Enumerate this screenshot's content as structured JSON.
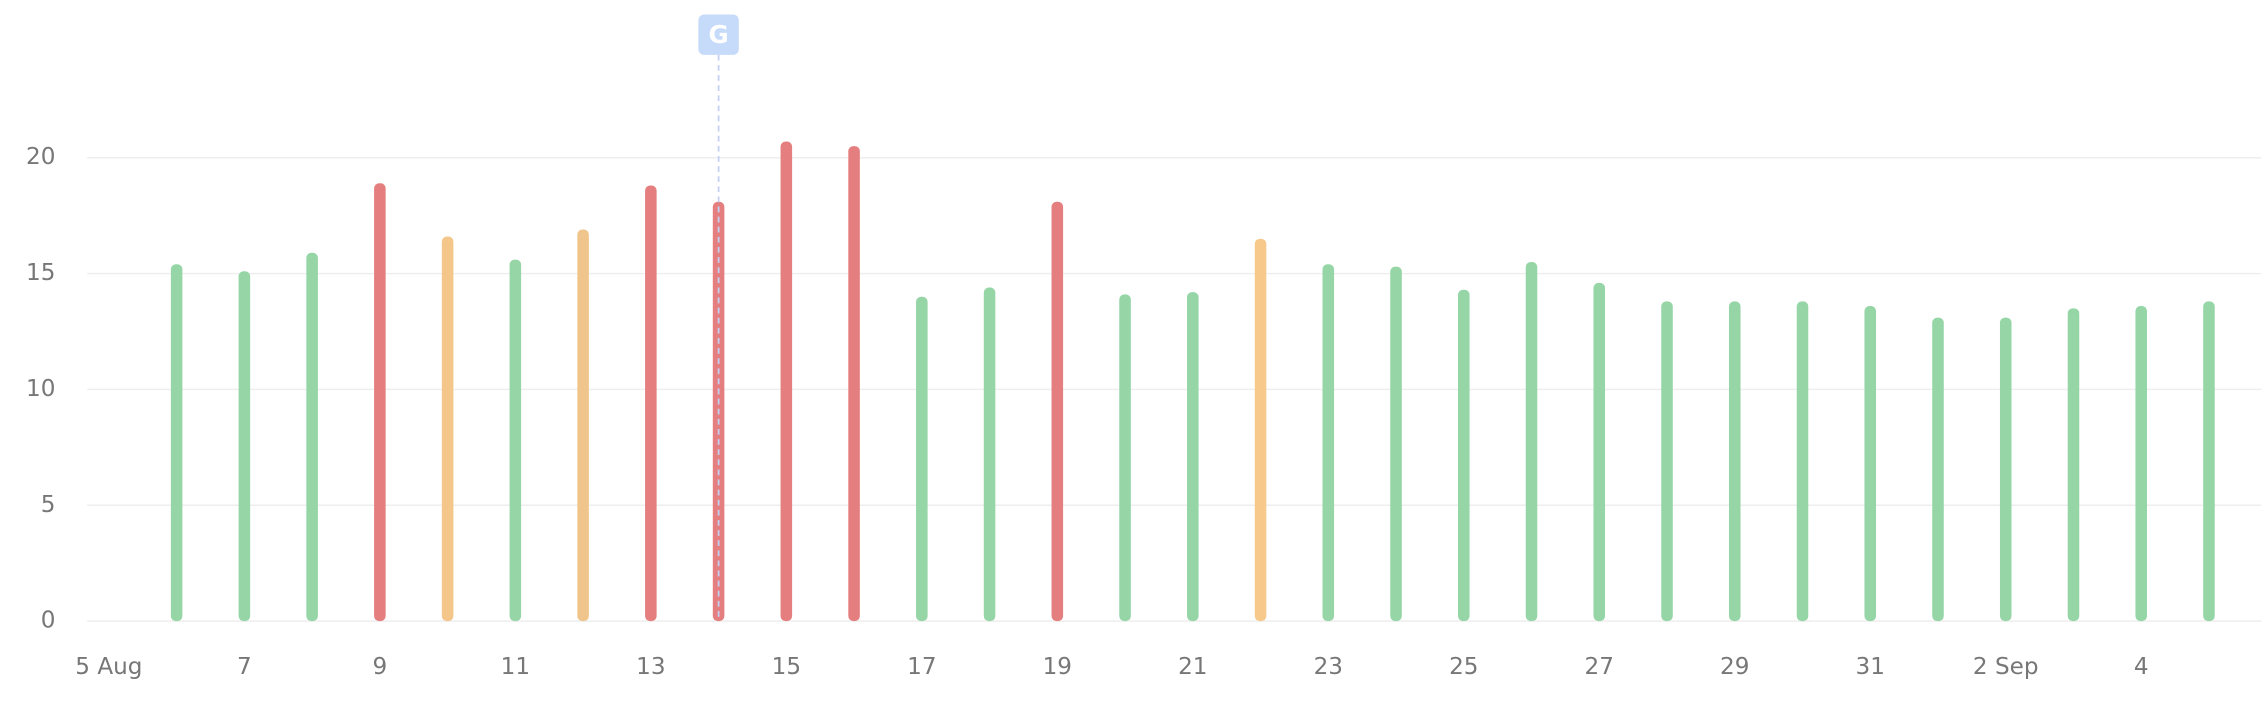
{
  "chart_data": {
    "type": "bar",
    "categories": [
      "5 Aug",
      null,
      "7",
      null,
      "9",
      null,
      "11",
      null,
      "13",
      null,
      "15",
      null,
      "17",
      null,
      "19",
      null,
      "21",
      null,
      "23",
      null,
      "25",
      null,
      "27",
      null,
      "29",
      null,
      "31",
      null,
      "2 Sep",
      null,
      "4",
      null
    ],
    "values": [
      null,
      15.4,
      15.1,
      15.9,
      18.9,
      16.6,
      15.6,
      16.9,
      18.8,
      18.1,
      20.7,
      20.5,
      14.0,
      14.4,
      18.1,
      14.1,
      14.2,
      16.5,
      15.4,
      15.3,
      14.3,
      15.5,
      14.6,
      13.8,
      13.8,
      13.8,
      13.6,
      13.1,
      13.1,
      13.5,
      13.6,
      13.8
    ],
    "colors": [
      null,
      "#95d5a6",
      "#95d5a6",
      "#95d5a6",
      "#e57f7f",
      "#f5c68a",
      "#95d5a6",
      "#f0c58c",
      "#e57f7f",
      "#e57f7f",
      "#e57f7f",
      "#e57f7f",
      "#95d5a6",
      "#95d5a6",
      "#e57f7f",
      "#95d5a6",
      "#95d5a6",
      "#f7c98a",
      "#95d5a6",
      "#95d5a6",
      "#95d5a6",
      "#95d5a6",
      "#95d5a6",
      "#95d5a6",
      "#95d5a6",
      "#95d5a6",
      "#95d5a6",
      "#95d5a6",
      "#95d5a6",
      "#95d5a6",
      "#95d5a6",
      "#95d5a6"
    ],
    "ylim": [
      0,
      25
    ],
    "yticks": [
      0,
      5,
      10,
      15,
      20
    ],
    "grid": true,
    "annotations": [
      {
        "text": "G",
        "index": 9
      }
    ]
  }
}
